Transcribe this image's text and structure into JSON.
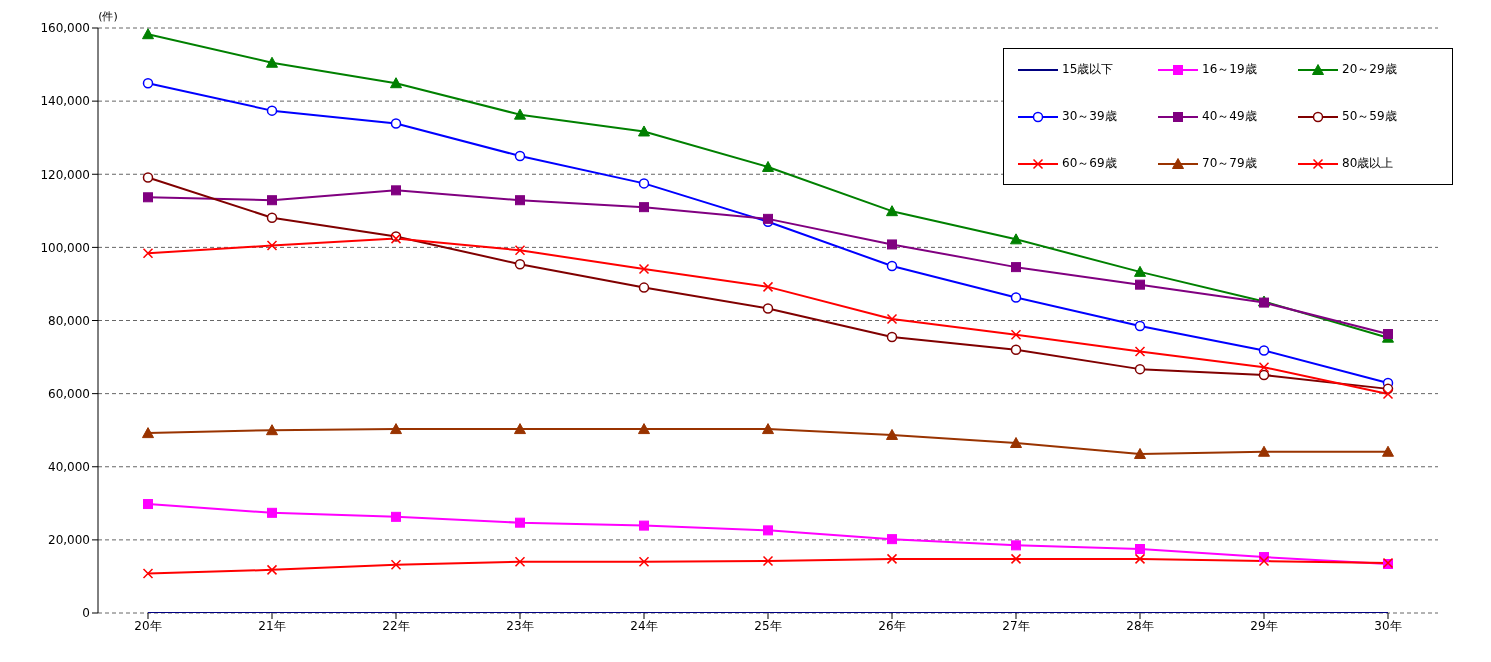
{
  "chart_data": {
    "type": "line",
    "ylabel": "(件)",
    "categories": [
      "20年",
      "21年",
      "22年",
      "23年",
      "24年",
      "25年",
      "26年",
      "27年",
      "28年",
      "29年",
      "30年"
    ],
    "ylim": [
      0,
      160000
    ],
    "yticks": [
      {
        "value": 0,
        "label": "0"
      },
      {
        "value": 20000,
        "label": "20,000"
      },
      {
        "value": 40000,
        "label": "40,000"
      },
      {
        "value": 60000,
        "label": "60,000"
      },
      {
        "value": 80000,
        "label": "80,000"
      },
      {
        "value": 100000,
        "label": "100,000"
      },
      {
        "value": 120000,
        "label": "120,000"
      },
      {
        "value": 140000,
        "label": "140,000"
      },
      {
        "value": 160000,
        "label": "160,000"
      }
    ],
    "grid": "y",
    "legend": "top right",
    "series": [
      {
        "name": "15歳以下",
        "color": "#000080",
        "marker": "none",
        "values": [
          0,
          0,
          0,
          0,
          0,
          0,
          0,
          0,
          0,
          0,
          0
        ]
      },
      {
        "name": "16～19歳",
        "color": "#ff00ff",
        "marker": "square",
        "values": [
          29800,
          27400,
          26300,
          24700,
          23900,
          22600,
          20200,
          18500,
          17500,
          15300,
          13400
        ]
      },
      {
        "name": "20～29歳",
        "color": "#008000",
        "marker": "triangle",
        "values": [
          158300,
          150500,
          144900,
          136300,
          131700,
          122000,
          109900,
          102200,
          93300,
          85200,
          75300
        ]
      },
      {
        "name": "30～39歳",
        "color": "#0000ff",
        "marker": "circle",
        "values": [
          144900,
          137400,
          133900,
          125000,
          117500,
          107000,
          94900,
          86300,
          78500,
          71800,
          62900
        ]
      },
      {
        "name": "40～49歳",
        "color": "#800080",
        "marker": "square",
        "values": [
          113700,
          112900,
          115600,
          112900,
          111000,
          107800,
          100800,
          94600,
          89800,
          84900,
          76300
        ]
      },
      {
        "name": "50～59歳",
        "color": "#800000",
        "marker": "circle",
        "values": [
          119100,
          108100,
          103000,
          95400,
          89000,
          83300,
          75500,
          72000,
          66700,
          65100,
          61300
        ]
      },
      {
        "name": "60～69歳",
        "color": "#ff0000",
        "marker": "cross",
        "values": [
          98400,
          100500,
          102400,
          99200,
          94100,
          89200,
          80400,
          76100,
          71500,
          67200,
          59900
        ]
      },
      {
        "name": "70～79歳",
        "color": "#993300",
        "marker": "triangle",
        "values": [
          49200,
          50000,
          50300,
          50300,
          50300,
          50300,
          48700,
          46500,
          43500,
          44100,
          44100
        ]
      },
      {
        "name": "80歳以上",
        "color": "#ff0000",
        "marker": "cross",
        "values": [
          10800,
          11800,
          13200,
          14000,
          14000,
          14200,
          14800,
          14800,
          14800,
          14200,
          13700
        ]
      }
    ]
  }
}
